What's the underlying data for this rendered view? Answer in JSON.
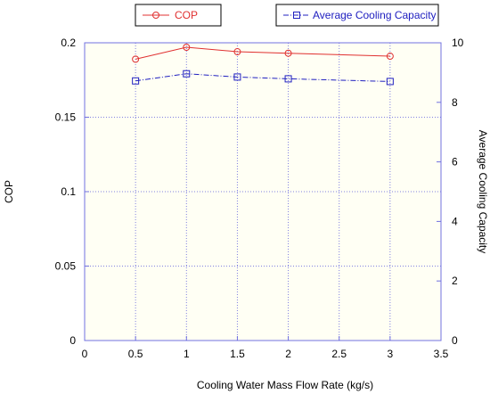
{
  "chart_data": {
    "type": "line",
    "title": "",
    "xlabel": "Cooling Water Mass Flow Rate (kg/s)",
    "ylabel_left": "COP",
    "ylabel_right": "Average Cooling Capacity",
    "xlim": [
      0,
      3.5
    ],
    "ylim_left": [
      0,
      0.2
    ],
    "ylim_right": [
      0,
      10
    ],
    "x_ticks": [
      "0",
      "0.5",
      "1",
      "1.5",
      "2",
      "2.5",
      "3",
      "3.5"
    ],
    "y_left_ticks": [
      "0",
      "0.05",
      "0.1",
      "0.15",
      "0.2"
    ],
    "y_right_ticks": [
      "0",
      "2",
      "4",
      "6",
      "8",
      "10"
    ],
    "grid": true,
    "legend_placement": "top",
    "series": [
      {
        "name": "COP",
        "axis": "left",
        "color": "#e03030",
        "marker": "circle",
        "line_style": "solid",
        "x": [
          0.5,
          1,
          1.5,
          2,
          3
        ],
        "values": [
          0.189,
          0.197,
          0.194,
          0.193,
          0.191
        ]
      },
      {
        "name": "Average Cooling Capacity",
        "axis": "right",
        "color": "#2020c0",
        "marker": "square",
        "line_style": "dash-dot",
        "x": [
          0.5,
          1,
          1.5,
          2,
          3
        ],
        "values": [
          8.72,
          8.96,
          8.85,
          8.79,
          8.7
        ]
      }
    ]
  }
}
